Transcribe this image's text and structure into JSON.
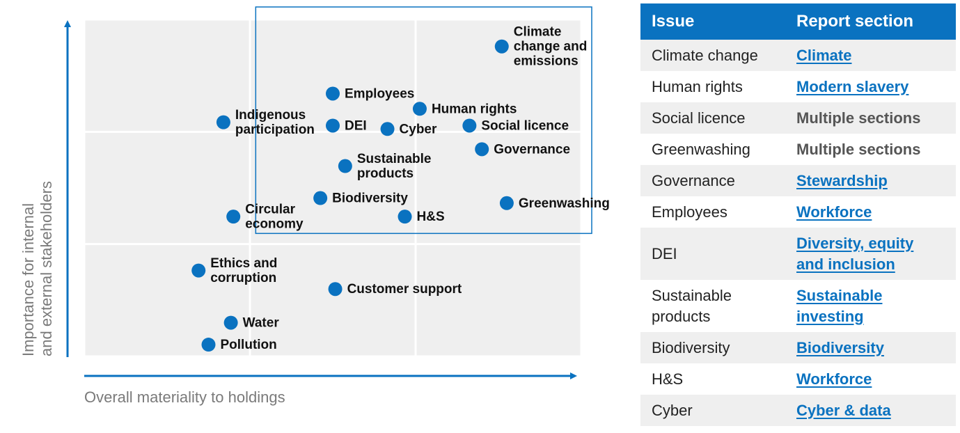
{
  "chart_data": {
    "type": "scatter",
    "title": "",
    "xlabel": "Overall materiality to holdings",
    "ylabel_lines": [
      "Importance for internal",
      "and external stakeholders"
    ],
    "xlim": [
      0,
      100
    ],
    "ylim": [
      0,
      100
    ],
    "grid": "3x3",
    "highlight_box": {
      "x_from": 34.5,
      "y_from": 36.5
    },
    "point_color": "#0a72c0",
    "points": [
      {
        "lines": [
          "Climate",
          "change and",
          "emissions"
        ],
        "x": 84,
        "y": 92
      },
      {
        "lines": [
          "Employees"
        ],
        "x": 50,
        "y": 78
      },
      {
        "lines": [
          "Human rights"
        ],
        "x": 67.5,
        "y": 73.5
      },
      {
        "lines": [
          "Indigenous",
          "participation"
        ],
        "x": 28,
        "y": 69.5
      },
      {
        "lines": [
          "DEI"
        ],
        "x": 50,
        "y": 68.5
      },
      {
        "lines": [
          "Cyber"
        ],
        "x": 61,
        "y": 67.5
      },
      {
        "lines": [
          "Social licence"
        ],
        "x": 77.5,
        "y": 68.5
      },
      {
        "lines": [
          "Governance"
        ],
        "x": 80,
        "y": 61.5
      },
      {
        "lines": [
          "Sustainable",
          "products"
        ],
        "x": 52.5,
        "y": 56.5
      },
      {
        "lines": [
          "Biodiversity"
        ],
        "x": 47.5,
        "y": 47
      },
      {
        "lines": [
          "Greenwashing"
        ],
        "x": 85,
        "y": 45.5
      },
      {
        "lines": [
          "Circular",
          "economy"
        ],
        "x": 30,
        "y": 41.5
      },
      {
        "lines": [
          "H&S"
        ],
        "x": 64.5,
        "y": 41.5
      },
      {
        "lines": [
          "Ethics and",
          "corruption"
        ],
        "x": 23,
        "y": 25.5
      },
      {
        "lines": [
          "Customer support"
        ],
        "x": 50.5,
        "y": 20
      },
      {
        "lines": [
          "Water"
        ],
        "x": 29.5,
        "y": 10
      },
      {
        "lines": [
          "Pollution"
        ],
        "x": 25,
        "y": 3.5
      }
    ]
  },
  "table": {
    "header": {
      "issue": "Issue",
      "section": "Report section"
    },
    "rows": [
      {
        "issue": "Climate change",
        "section": "Climate",
        "link": true
      },
      {
        "issue": "Human rights",
        "section": "Modern slavery",
        "link": true
      },
      {
        "issue": "Social licence",
        "section": "Multiple sections",
        "link": false
      },
      {
        "issue": "Greenwashing",
        "section": "Multiple sections",
        "link": false
      },
      {
        "issue": "Governance",
        "section": "Stewardship",
        "link": true
      },
      {
        "issue": "Employees",
        "section": "Workforce",
        "link": true
      },
      {
        "issue": "DEI",
        "section": "Diversity, equity and inclusion",
        "link": true
      },
      {
        "issue": "Sustainable products",
        "section": "Sustainable investing",
        "link": true
      },
      {
        "issue": "Biodiversity",
        "section": "Biodiversity",
        "link": true
      },
      {
        "issue": "H&S",
        "section": "Workforce",
        "link": true
      },
      {
        "issue": "Cyber",
        "section": "Cyber & data",
        "link": true
      }
    ]
  }
}
